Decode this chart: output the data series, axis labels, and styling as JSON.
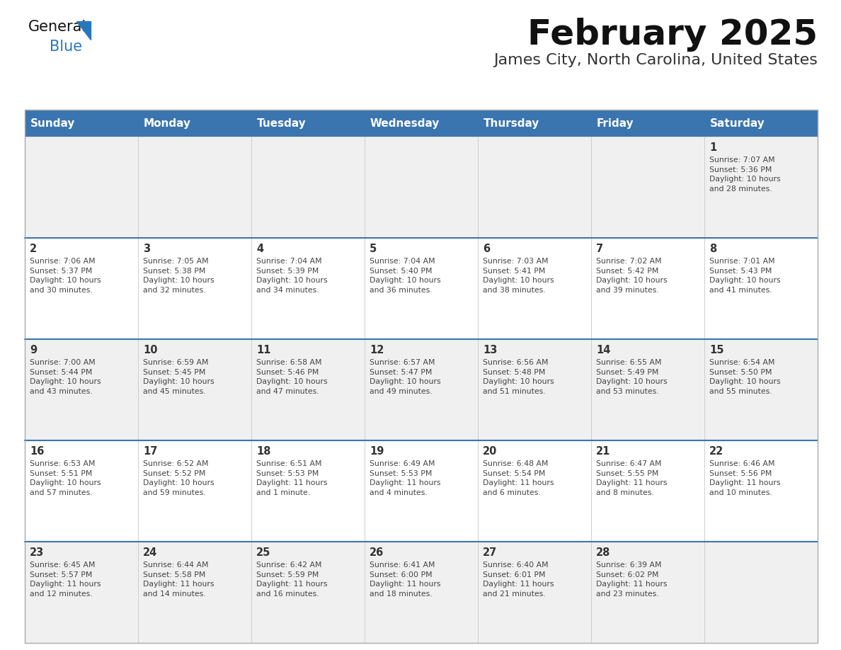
{
  "title": "February 2025",
  "subtitle": "James City, North Carolina, United States",
  "days_of_week": [
    "Sunday",
    "Monday",
    "Tuesday",
    "Wednesday",
    "Thursday",
    "Friday",
    "Saturday"
  ],
  "header_bg": "#3A75B0",
  "header_text": "#FFFFFF",
  "cell_bg_light": "#F0F0F0",
  "cell_bg_white": "#FFFFFF",
  "cell_border": "#AAAAAA",
  "row_separator": "#3A75B0",
  "day_num_color": "#333333",
  "text_color": "#444444",
  "title_color": "#111111",
  "subtitle_color": "#333333",
  "logo_general_color": "#111111",
  "logo_blue_color": "#2777BB",
  "logo_triangle_color": "#2777BB",
  "weeks": [
    [
      {
        "day": null,
        "info": null
      },
      {
        "day": null,
        "info": null
      },
      {
        "day": null,
        "info": null
      },
      {
        "day": null,
        "info": null
      },
      {
        "day": null,
        "info": null
      },
      {
        "day": null,
        "info": null
      },
      {
        "day": 1,
        "info": "Sunrise: 7:07 AM\nSunset: 5:36 PM\nDaylight: 10 hours\nand 28 minutes."
      }
    ],
    [
      {
        "day": 2,
        "info": "Sunrise: 7:06 AM\nSunset: 5:37 PM\nDaylight: 10 hours\nand 30 minutes."
      },
      {
        "day": 3,
        "info": "Sunrise: 7:05 AM\nSunset: 5:38 PM\nDaylight: 10 hours\nand 32 minutes."
      },
      {
        "day": 4,
        "info": "Sunrise: 7:04 AM\nSunset: 5:39 PM\nDaylight: 10 hours\nand 34 minutes."
      },
      {
        "day": 5,
        "info": "Sunrise: 7:04 AM\nSunset: 5:40 PM\nDaylight: 10 hours\nand 36 minutes."
      },
      {
        "day": 6,
        "info": "Sunrise: 7:03 AM\nSunset: 5:41 PM\nDaylight: 10 hours\nand 38 minutes."
      },
      {
        "day": 7,
        "info": "Sunrise: 7:02 AM\nSunset: 5:42 PM\nDaylight: 10 hours\nand 39 minutes."
      },
      {
        "day": 8,
        "info": "Sunrise: 7:01 AM\nSunset: 5:43 PM\nDaylight: 10 hours\nand 41 minutes."
      }
    ],
    [
      {
        "day": 9,
        "info": "Sunrise: 7:00 AM\nSunset: 5:44 PM\nDaylight: 10 hours\nand 43 minutes."
      },
      {
        "day": 10,
        "info": "Sunrise: 6:59 AM\nSunset: 5:45 PM\nDaylight: 10 hours\nand 45 minutes."
      },
      {
        "day": 11,
        "info": "Sunrise: 6:58 AM\nSunset: 5:46 PM\nDaylight: 10 hours\nand 47 minutes."
      },
      {
        "day": 12,
        "info": "Sunrise: 6:57 AM\nSunset: 5:47 PM\nDaylight: 10 hours\nand 49 minutes."
      },
      {
        "day": 13,
        "info": "Sunrise: 6:56 AM\nSunset: 5:48 PM\nDaylight: 10 hours\nand 51 minutes."
      },
      {
        "day": 14,
        "info": "Sunrise: 6:55 AM\nSunset: 5:49 PM\nDaylight: 10 hours\nand 53 minutes."
      },
      {
        "day": 15,
        "info": "Sunrise: 6:54 AM\nSunset: 5:50 PM\nDaylight: 10 hours\nand 55 minutes."
      }
    ],
    [
      {
        "day": 16,
        "info": "Sunrise: 6:53 AM\nSunset: 5:51 PM\nDaylight: 10 hours\nand 57 minutes."
      },
      {
        "day": 17,
        "info": "Sunrise: 6:52 AM\nSunset: 5:52 PM\nDaylight: 10 hours\nand 59 minutes."
      },
      {
        "day": 18,
        "info": "Sunrise: 6:51 AM\nSunset: 5:53 PM\nDaylight: 11 hours\nand 1 minute."
      },
      {
        "day": 19,
        "info": "Sunrise: 6:49 AM\nSunset: 5:53 PM\nDaylight: 11 hours\nand 4 minutes."
      },
      {
        "day": 20,
        "info": "Sunrise: 6:48 AM\nSunset: 5:54 PM\nDaylight: 11 hours\nand 6 minutes."
      },
      {
        "day": 21,
        "info": "Sunrise: 6:47 AM\nSunset: 5:55 PM\nDaylight: 11 hours\nand 8 minutes."
      },
      {
        "day": 22,
        "info": "Sunrise: 6:46 AM\nSunset: 5:56 PM\nDaylight: 11 hours\nand 10 minutes."
      }
    ],
    [
      {
        "day": 23,
        "info": "Sunrise: 6:45 AM\nSunset: 5:57 PM\nDaylight: 11 hours\nand 12 minutes."
      },
      {
        "day": 24,
        "info": "Sunrise: 6:44 AM\nSunset: 5:58 PM\nDaylight: 11 hours\nand 14 minutes."
      },
      {
        "day": 25,
        "info": "Sunrise: 6:42 AM\nSunset: 5:59 PM\nDaylight: 11 hours\nand 16 minutes."
      },
      {
        "day": 26,
        "info": "Sunrise: 6:41 AM\nSunset: 6:00 PM\nDaylight: 11 hours\nand 18 minutes."
      },
      {
        "day": 27,
        "info": "Sunrise: 6:40 AM\nSunset: 6:01 PM\nDaylight: 11 hours\nand 21 minutes."
      },
      {
        "day": 28,
        "info": "Sunrise: 6:39 AM\nSunset: 6:02 PM\nDaylight: 11 hours\nand 23 minutes."
      },
      {
        "day": null,
        "info": null
      }
    ]
  ]
}
